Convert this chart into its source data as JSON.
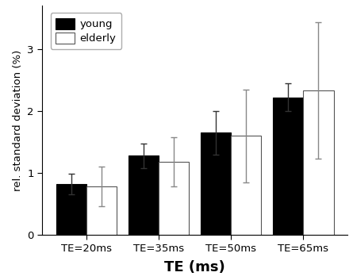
{
  "categories": [
    "TE=20ms",
    "TE=35ms",
    "TE=50ms",
    "TE=65ms"
  ],
  "young_values": [
    0.82,
    1.28,
    1.65,
    2.22
  ],
  "elderly_values": [
    0.78,
    1.18,
    1.6,
    2.33
  ],
  "young_errors": [
    0.17,
    0.2,
    0.35,
    0.22
  ],
  "elderly_errors": [
    0.32,
    0.4,
    0.75,
    1.1
  ],
  "young_color": "#000000",
  "elderly_color": "#ffffff",
  "young_edgecolor": "#000000",
  "elderly_edgecolor": "#555555",
  "bar_width": 0.42,
  "ylim": [
    0,
    3.7
  ],
  "yticks": [
    0,
    1,
    2,
    3
  ],
  "ylabel": "rel. standard deviation (%)",
  "xlabel": "TE (ms)",
  "legend_labels": [
    "young",
    "elderly"
  ],
  "error_capsize": 3,
  "background_color": "#ffffff"
}
